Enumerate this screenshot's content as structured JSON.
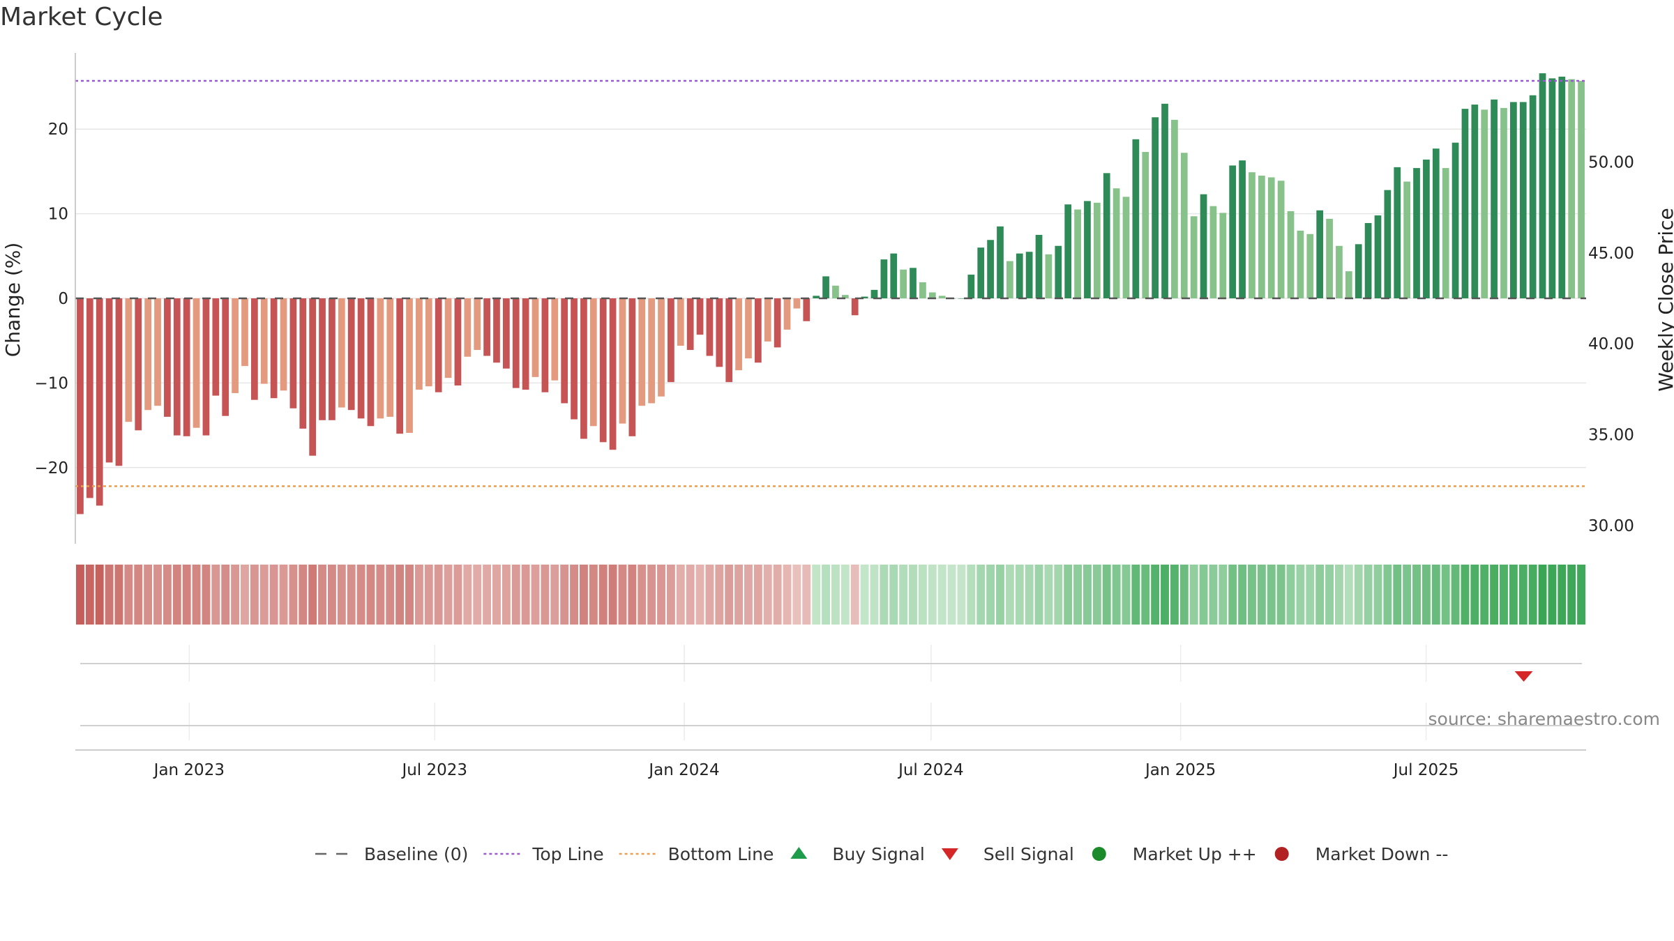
{
  "title": "Market Cycle",
  "source": "source: sharemaestro.com",
  "colors": {
    "neg_dark": "#c65454",
    "neg_light": "#e39a7e",
    "pos_dark": "#2e8b57",
    "pos_light": "#86c28a",
    "top_line": "#9b59d0",
    "bottom_line": "#e8a050",
    "baseline": "#555555",
    "buy": "#1e9b4b",
    "sell": "#d62728",
    "market_up": "#1a8a2a",
    "market_down": "#b22222"
  },
  "chart_data": {
    "type": "bar",
    "ylabel_left": "Change (%)",
    "ylabel_right": "Weekly Close Price",
    "ylim_left": [
      -29,
      29
    ],
    "yticks_left": [
      20,
      10,
      0,
      -10,
      -20
    ],
    "ytick_labels_left": [
      "20",
      "10",
      "0",
      "−10",
      "−20"
    ],
    "ylim_right": [
      29,
      56
    ],
    "yticks_right": [
      50,
      45,
      40,
      35,
      30
    ],
    "ytick_labels_right": [
      "50.00",
      "45.00",
      "40.00",
      "35.00",
      "30.00"
    ],
    "top_line": 25.7,
    "bottom_line": -22.2,
    "baseline": 0,
    "xlim": [
      "2022-10-09",
      "2025-10-27"
    ],
    "xticks": [
      {
        "date": "2023-01-01",
        "label": "Jan 2023"
      },
      {
        "date": "2023-07-01",
        "label": "Jul 2023"
      },
      {
        "date": "2024-01-01",
        "label": "Jan 2024"
      },
      {
        "date": "2024-07-01",
        "label": "Jul 2024"
      },
      {
        "date": "2025-01-01",
        "label": "Jan 2025"
      },
      {
        "date": "2025-07-01",
        "label": "Jul 2025"
      }
    ],
    "first_week": "2022-10-13",
    "values": [
      -25.5,
      -23.6,
      -24.5,
      -19.4,
      -19.8,
      -14.6,
      -15.6,
      -13.2,
      -12.7,
      -14.0,
      -16.2,
      -16.3,
      -15.3,
      -16.2,
      -11.5,
      -13.9,
      -11.2,
      -8.0,
      -12.0,
      -10.1,
      -11.8,
      -10.9,
      -13.0,
      -15.4,
      -18.6,
      -14.4,
      -14.4,
      -12.9,
      -13.2,
      -14.2,
      -15.1,
      -14.2,
      -14.0,
      -16.0,
      -15.9,
      -10.8,
      -10.4,
      -11.1,
      -9.4,
      -10.3,
      -6.9,
      -6.1,
      -6.8,
      -7.6,
      -8.3,
      -10.6,
      -10.8,
      -9.3,
      -11.1,
      -9.7,
      -12.4,
      -14.3,
      -16.6,
      -15.1,
      -17.0,
      -17.9,
      -14.8,
      -16.3,
      -12.7,
      -12.4,
      -11.6,
      -9.9,
      -5.6,
      -6.1,
      -4.3,
      -6.8,
      -8.1,
      -9.9,
      -8.5,
      -7.1,
      -7.6,
      -5.1,
      -5.8,
      -3.7,
      -1.2,
      -2.7,
      0.3,
      2.6,
      1.5,
      0.4,
      -2.0,
      0.2,
      1.0,
      4.6,
      5.3,
      3.4,
      3.6,
      1.9,
      0.7,
      0.3,
      0.0,
      0.0,
      2.8,
      6.0,
      6.9,
      8.5,
      4.4,
      5.3,
      5.5,
      7.5,
      5.2,
      6.2,
      11.1,
      10.5,
      11.5,
      11.3,
      14.8,
      13.0,
      12.0,
      18.8,
      17.3,
      21.4,
      23.0,
      21.1,
      17.2,
      9.7,
      12.3,
      10.9,
      10.1,
      15.7,
      16.3,
      14.9,
      14.5,
      14.3,
      13.9,
      10.3,
      8.0,
      7.6,
      10.4,
      9.4,
      6.2,
      3.2,
      6.4,
      8.9,
      9.8,
      12.8,
      15.5,
      13.8,
      15.4,
      16.4,
      17.7,
      15.4,
      18.4,
      22.4,
      22.9,
      22.3,
      23.5,
      22.5,
      23.2,
      23.2,
      24.0,
      26.6,
      26.0,
      26.2,
      25.9,
      25.7
    ],
    "shades": [
      "d",
      "d",
      "d",
      "d",
      "d",
      "l",
      "d",
      "l",
      "l",
      "d",
      "d",
      "d",
      "l",
      "d",
      "d",
      "d",
      "l",
      "l",
      "d",
      "l",
      "d",
      "l",
      "d",
      "d",
      "d",
      "d",
      "d",
      "l",
      "d",
      "d",
      "d",
      "l",
      "l",
      "d",
      "l",
      "l",
      "l",
      "d",
      "l",
      "d",
      "l",
      "l",
      "d",
      "d",
      "d",
      "d",
      "d",
      "l",
      "d",
      "l",
      "d",
      "d",
      "d",
      "l",
      "d",
      "d",
      "l",
      "d",
      "l",
      "l",
      "l",
      "d",
      "l",
      "d",
      "d",
      "d",
      "d",
      "d",
      "l",
      "l",
      "d",
      "l",
      "d",
      "l",
      "l",
      "d",
      "d",
      "d",
      "l",
      "l",
      "d",
      "d",
      "d",
      "d",
      "d",
      "l",
      "d",
      "l",
      "l",
      "l",
      "d",
      "d",
      "d",
      "d",
      "d",
      "d",
      "l",
      "d",
      "d",
      "d",
      "l",
      "d",
      "d",
      "l",
      "d",
      "l",
      "d",
      "l",
      "l",
      "d",
      "l",
      "d",
      "d",
      "l",
      "l",
      "l",
      "d",
      "l",
      "l",
      "d",
      "d",
      "l",
      "l",
      "l",
      "l",
      "l",
      "l",
      "l",
      "d",
      "l",
      "l",
      "l",
      "d",
      "d",
      "d",
      "d",
      "d",
      "l",
      "d",
      "d",
      "d",
      "l",
      "d",
      "d",
      "d",
      "l",
      "d",
      "l",
      "d",
      "d",
      "d",
      "d",
      "d",
      "d",
      "l",
      "l"
    ],
    "sell_signals": [
      {
        "date": "2025-09-11"
      }
    ],
    "buy_signals": [],
    "legend": [
      {
        "type": "dash",
        "label": "Baseline (0)"
      },
      {
        "type": "dot-purple",
        "label": "Top Line"
      },
      {
        "type": "dot-orange",
        "label": "Bottom Line"
      },
      {
        "type": "tri-up",
        "label": "Buy Signal"
      },
      {
        "type": "tri-down",
        "label": "Sell Signal"
      },
      {
        "type": "circle-green",
        "label": "Market Up ++"
      },
      {
        "type": "circle-red",
        "label": "Market Down --"
      }
    ],
    "legend_placement": "bottom-center",
    "grid": true
  }
}
